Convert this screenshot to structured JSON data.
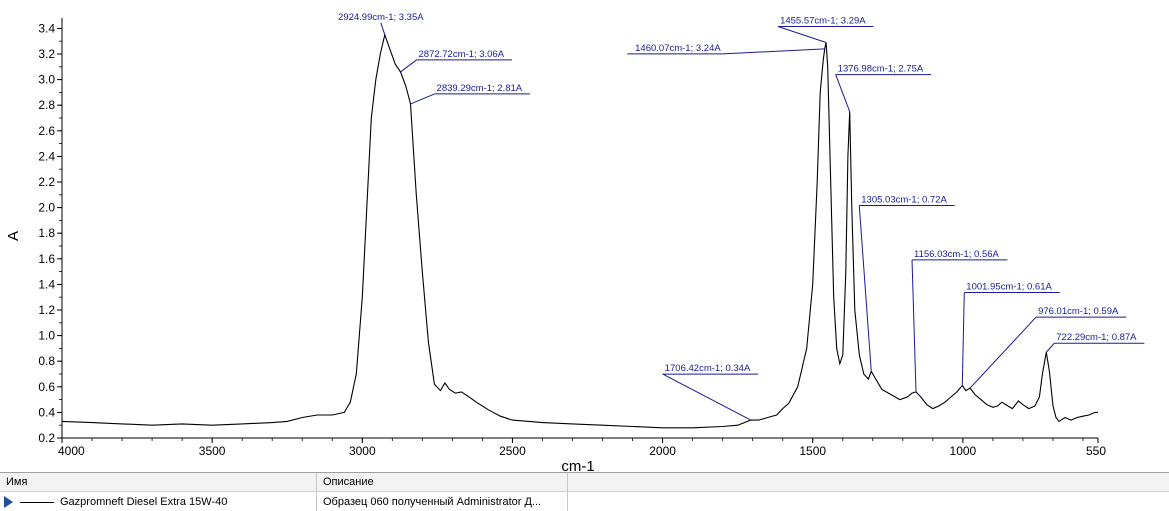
{
  "chart_data": {
    "type": "line",
    "xlabel": "cm-1",
    "ylabel": "A",
    "xlim": [
      4000,
      550
    ],
    "ylim": [
      0.2,
      3.45
    ],
    "x_reversed": true,
    "x_ticks": [
      4000,
      3500,
      3000,
      2500,
      2000,
      1500,
      1000,
      550
    ],
    "y_ticks": [
      0.2,
      0.4,
      0.6,
      0.8,
      1.0,
      1.2,
      1.4,
      1.6,
      1.8,
      2.0,
      2.2,
      2.4,
      2.6,
      2.8,
      3.0,
      3.2,
      3.4
    ],
    "grid": false,
    "series": [
      {
        "name": "Gazpromneft Diesel Extra 15W-40",
        "color": "#000000",
        "points": [
          [
            4000,
            0.33
          ],
          [
            3900,
            0.32
          ],
          [
            3800,
            0.31
          ],
          [
            3700,
            0.3
          ],
          [
            3600,
            0.31
          ],
          [
            3500,
            0.3
          ],
          [
            3400,
            0.31
          ],
          [
            3300,
            0.32
          ],
          [
            3250,
            0.33
          ],
          [
            3200,
            0.36
          ],
          [
            3150,
            0.38
          ],
          [
            3100,
            0.38
          ],
          [
            3060,
            0.4
          ],
          [
            3040,
            0.48
          ],
          [
            3020,
            0.7
          ],
          [
            3000,
            1.3
          ],
          [
            2985,
            2.0
          ],
          [
            2970,
            2.7
          ],
          [
            2955,
            3.0
          ],
          [
            2940,
            3.2
          ],
          [
            2924.99,
            3.35
          ],
          [
            2910,
            3.25
          ],
          [
            2890,
            3.12
          ],
          [
            2872.72,
            3.06
          ],
          [
            2855,
            2.95
          ],
          [
            2839.29,
            2.81
          ],
          [
            2820,
            2.1
          ],
          [
            2800,
            1.5
          ],
          [
            2780,
            0.95
          ],
          [
            2760,
            0.62
          ],
          [
            2740,
            0.57
          ],
          [
            2725,
            0.63
          ],
          [
            2710,
            0.58
          ],
          [
            2690,
            0.55
          ],
          [
            2670,
            0.56
          ],
          [
            2650,
            0.53
          ],
          [
            2620,
            0.48
          ],
          [
            2580,
            0.42
          ],
          [
            2540,
            0.37
          ],
          [
            2500,
            0.34
          ],
          [
            2400,
            0.32
          ],
          [
            2300,
            0.31
          ],
          [
            2200,
            0.3
          ],
          [
            2100,
            0.29
          ],
          [
            2000,
            0.28
          ],
          [
            1900,
            0.28
          ],
          [
            1800,
            0.29
          ],
          [
            1750,
            0.3
          ],
          [
            1706.42,
            0.34
          ],
          [
            1680,
            0.34
          ],
          [
            1650,
            0.36
          ],
          [
            1620,
            0.38
          ],
          [
            1600,
            0.43
          ],
          [
            1580,
            0.47
          ],
          [
            1550,
            0.6
          ],
          [
            1520,
            0.9
          ],
          [
            1500,
            1.4
          ],
          [
            1485,
            2.2
          ],
          [
            1475,
            2.9
          ],
          [
            1465,
            3.15
          ],
          [
            1460.07,
            3.24
          ],
          [
            1455.57,
            3.29
          ],
          [
            1450,
            3.1
          ],
          [
            1440,
            2.2
          ],
          [
            1430,
            1.3
          ],
          [
            1420,
            0.9
          ],
          [
            1410,
            0.78
          ],
          [
            1400,
            0.85
          ],
          [
            1390,
            1.5
          ],
          [
            1383,
            2.4
          ],
          [
            1376.98,
            2.75
          ],
          [
            1370,
            2.0
          ],
          [
            1360,
            1.2
          ],
          [
            1345,
            0.85
          ],
          [
            1330,
            0.7
          ],
          [
            1315,
            0.66
          ],
          [
            1305.03,
            0.72
          ],
          [
            1290,
            0.66
          ],
          [
            1270,
            0.58
          ],
          [
            1240,
            0.54
          ],
          [
            1210,
            0.5
          ],
          [
            1185,
            0.52
          ],
          [
            1170,
            0.55
          ],
          [
            1156.03,
            0.56
          ],
          [
            1140,
            0.52
          ],
          [
            1120,
            0.46
          ],
          [
            1100,
            0.43
          ],
          [
            1080,
            0.45
          ],
          [
            1060,
            0.48
          ],
          [
            1040,
            0.52
          ],
          [
            1020,
            0.56
          ],
          [
            1001.95,
            0.61
          ],
          [
            990,
            0.57
          ],
          [
            976.01,
            0.59
          ],
          [
            960,
            0.54
          ],
          [
            940,
            0.5
          ],
          [
            920,
            0.46
          ],
          [
            900,
            0.44
          ],
          [
            885,
            0.45
          ],
          [
            870,
            0.48
          ],
          [
            850,
            0.45
          ],
          [
            835,
            0.43
          ],
          [
            815,
            0.49
          ],
          [
            800,
            0.46
          ],
          [
            780,
            0.43
          ],
          [
            760,
            0.45
          ],
          [
            745,
            0.52
          ],
          [
            735,
            0.7
          ],
          [
            722.29,
            0.87
          ],
          [
            712,
            0.72
          ],
          [
            700,
            0.45
          ],
          [
            690,
            0.36
          ],
          [
            680,
            0.33
          ],
          [
            660,
            0.36
          ],
          [
            640,
            0.34
          ],
          [
            620,
            0.36
          ],
          [
            600,
            0.37
          ],
          [
            580,
            0.38
          ],
          [
            560,
            0.4
          ],
          [
            550,
            0.4
          ]
        ]
      }
    ],
    "annotations": [
      {
        "x": 2924.99,
        "y": 3.35,
        "label": "2924.99cm-1; 3.35A"
      },
      {
        "x": 2872.72,
        "y": 3.06,
        "label": "2872.72cm-1; 3.06A"
      },
      {
        "x": 2839.29,
        "y": 2.81,
        "label": "2839.29cm-1; 2.81A"
      },
      {
        "x": 1455.57,
        "y": 3.29,
        "label": "1455.57cm-1; 3.29A"
      },
      {
        "x": 1460.07,
        "y": 3.24,
        "label": "1460.07cm-1; 3.24A"
      },
      {
        "x": 1376.98,
        "y": 2.75,
        "label": "1376.98cm-1; 2.75A"
      },
      {
        "x": 1305.03,
        "y": 0.72,
        "label": "1305.03cm-1; 0.72A"
      },
      {
        "x": 1156.03,
        "y": 0.56,
        "label": "1156.03cm-1; 0.56A"
      },
      {
        "x": 1001.95,
        "y": 0.61,
        "label": "1001.95cm-1; 0.61A"
      },
      {
        "x": 976.01,
        "y": 0.59,
        "label": "976.01cm-1; 0.59A"
      },
      {
        "x": 722.29,
        "y": 0.87,
        "label": "722.29cm-1; 0.87A"
      },
      {
        "x": 1706.42,
        "y": 0.34,
        "label": "1706.42cm-1; 0.34A"
      }
    ]
  },
  "legend": {
    "columns": [
      "Имя",
      "Описание"
    ],
    "rows": [
      {
        "name": "Gazpromneft Diesel Extra 15W-40",
        "description": "Образец 060 полученный Administrator Д..."
      }
    ]
  }
}
